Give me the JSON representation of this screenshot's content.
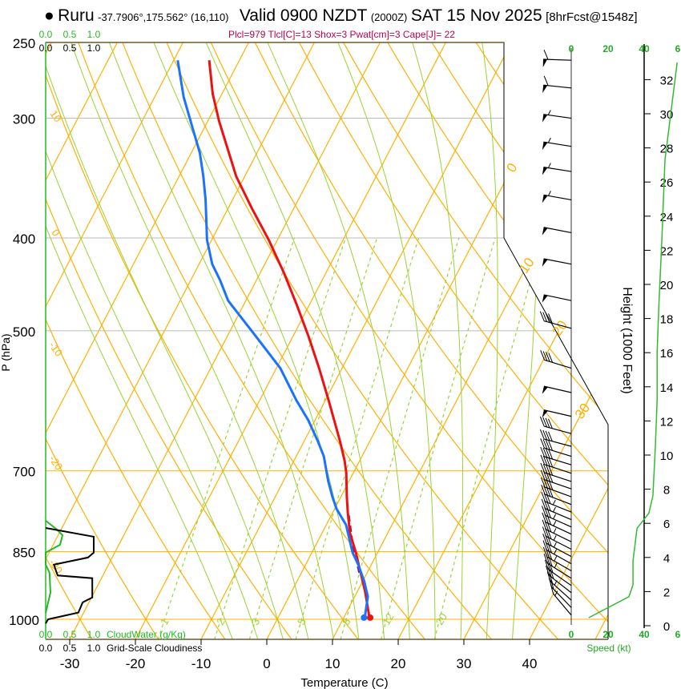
{
  "header": {
    "bullet": "●",
    "station": "Ruru",
    "coords": "-37.7906°,175.562° (16,110)",
    "valid": "Valid 0900 NZDT",
    "utc": "(2000Z)",
    "date": "SAT 15 Nov 2025",
    "forecast": "[8hrFcst@1548z]"
  },
  "parcel_info": "Plcl=979 Tlcl[C]=13 Shox=3 Pwat[cm]=3 Cape[J]= 22",
  "colors": {
    "temp": "#ee1111",
    "dewpoint": "#1a73ff",
    "parcel": "#8b1a6b",
    "isotherm": "#ffb000",
    "moist": "#99d433",
    "mixing": "#99d433",
    "cloudwater": "#22bb22",
    "cloudiness": "#000000",
    "speed": "#33bb33"
  },
  "chart_data": {
    "type": "skew-t",
    "title": "Valid 0900 NZDT (2000Z) SAT 15 Nov 2025",
    "xlabel": "Temperature (C)",
    "ylabel": "P (hPa)",
    "right_ylabel": "Height (1000 Feet)",
    "pressure_ticks": [
      250,
      300,
      400,
      500,
      700,
      850,
      1000
    ],
    "temp_ticks": [
      -30,
      -20,
      -10,
      0,
      10,
      20,
      30,
      40
    ],
    "xlim": [
      -34,
      52
    ],
    "ylim": [
      1050,
      250
    ],
    "temperature": [
      [
        996,
        13.9
      ],
      [
        938,
        11.3
      ],
      [
        894,
        9.0
      ],
      [
        852,
        6.7
      ],
      [
        812,
        4.2
      ],
      [
        774,
        2.3
      ],
      [
        745,
        0.9
      ],
      [
        703,
        -1.1
      ],
      [
        683,
        -2.3
      ],
      [
        651,
        -4.6
      ],
      [
        591,
        -9.5
      ],
      [
        547,
        -13.5
      ],
      [
        507,
        -17.6
      ],
      [
        469,
        -22.0
      ],
      [
        435,
        -26.4
      ],
      [
        402,
        -31.3
      ],
      [
        373,
        -36.3
      ],
      [
        345,
        -41.3
      ],
      [
        302,
        -48.3
      ],
      [
        283,
        -51.4
      ],
      [
        261,
        -54.6
      ]
    ],
    "dewpoint": [
      [
        996,
        13.2
      ],
      [
        947,
        12.0
      ],
      [
        912,
        10.2
      ],
      [
        877,
        8.0
      ],
      [
        852,
        6.2
      ],
      [
        797,
        3.0
      ],
      [
        767,
        0.3
      ],
      [
        745,
        -1.3
      ],
      [
        717,
        -3.2
      ],
      [
        676,
        -5.8
      ],
      [
        651,
        -8.0
      ],
      [
        620,
        -11.0
      ],
      [
        591,
        -14.4
      ],
      [
        547,
        -19.4
      ],
      [
        507,
        -25.6
      ],
      [
        465,
        -32.7
      ],
      [
        443,
        -35.5
      ],
      [
        426,
        -38.0
      ],
      [
        402,
        -40.7
      ],
      [
        365,
        -44.1
      ],
      [
        345,
        -46.3
      ],
      [
        326,
        -48.7
      ],
      [
        307,
        -51.8
      ],
      [
        285,
        -55.6
      ],
      [
        261,
        -59.4
      ]
    ],
    "parcel_trace": [
      [
        894,
        8.8
      ],
      [
        836,
        5.6
      ],
      [
        774,
        2.4
      ]
    ],
    "isotherm_labels": [
      {
        "t": 0,
        "text": "0"
      },
      {
        "t": 10,
        "text": "10"
      },
      {
        "t": 20,
        "text": "20"
      },
      {
        "t": 30,
        "text": "30"
      }
    ],
    "adiabat_labels": [
      {
        "text": "10",
        "p": 300
      },
      {
        "text": "0",
        "p": 397
      },
      {
        "text": "-10",
        "p": 525
      },
      {
        "text": "-20",
        "p": 690
      },
      {
        "text": "-30",
        "p": 885
      }
    ],
    "mixing_ratios": [
      {
        "w": 1,
        "text": "1"
      },
      {
        "w": 2,
        "text": "2"
      },
      {
        "w": 3,
        "text": "3"
      },
      {
        "w": 5,
        "text": "5"
      },
      {
        "w": 8,
        "text": "8"
      },
      {
        "w": 12,
        "text": "12"
      },
      {
        "w": 20,
        "text": "20"
      }
    ],
    "cloud_water_gkg": [
      [
        789,
        0.0
      ],
      [
        805,
        0.22
      ],
      [
        817,
        0.35
      ],
      [
        836,
        0.3
      ],
      [
        852,
        0.0
      ],
      [
        877,
        0.0
      ],
      [
        894,
        0.08
      ],
      [
        938,
        0.1
      ],
      [
        985,
        0.0
      ]
    ],
    "cloudiness": [
      [
        803,
        0.0
      ],
      [
        820,
        1.0
      ],
      [
        852,
        1.0
      ],
      [
        862,
        0.88
      ],
      [
        877,
        0.17
      ],
      [
        900,
        0.25
      ],
      [
        906,
        0.97
      ],
      [
        949,
        0.97
      ],
      [
        960,
        0.77
      ],
      [
        984,
        0.68
      ],
      [
        1000,
        0.05
      ],
      [
        1010,
        0.0
      ]
    ],
    "cloud_scale_ticks": [
      "0.0",
      "0.5",
      "1.0"
    ],
    "cloudwater_label": "CloudWater (g/Kg)",
    "cloudiness_label": "Grid-Scale Cloudiness",
    "winds": [
      {
        "p": 261,
        "spd": 60,
        "dir": 272
      },
      {
        "p": 279,
        "spd": 60,
        "dir": 276
      },
      {
        "p": 300,
        "spd": 55,
        "dir": 278
      },
      {
        "p": 321,
        "spd": 55,
        "dir": 279
      },
      {
        "p": 341,
        "spd": 55,
        "dir": 279
      },
      {
        "p": 365,
        "spd": 55,
        "dir": 280
      },
      {
        "p": 395,
        "spd": 50,
        "dir": 281
      },
      {
        "p": 426,
        "spd": 50,
        "dir": 281
      },
      {
        "p": 465,
        "spd": 50,
        "dir": 282
      },
      {
        "p": 497,
        "spd": 40,
        "dir": 285
      },
      {
        "p": 547,
        "spd": 40,
        "dir": 287
      },
      {
        "p": 580,
        "spd": 50,
        "dir": 283
      },
      {
        "p": 614,
        "spd": 50,
        "dir": 283
      },
      {
        "p": 640,
        "spd": 40,
        "dir": 285
      },
      {
        "p": 660,
        "spd": 40,
        "dir": 285
      },
      {
        "p": 676,
        "spd": 40,
        "dir": 287
      },
      {
        "p": 690,
        "spd": 40,
        "dir": 287
      },
      {
        "p": 704,
        "spd": 40,
        "dir": 288
      },
      {
        "p": 718,
        "spd": 40,
        "dir": 288
      },
      {
        "p": 731,
        "spd": 40,
        "dir": 289
      },
      {
        "p": 745,
        "spd": 40,
        "dir": 290
      },
      {
        "p": 759,
        "spd": 40,
        "dir": 291
      },
      {
        "p": 773,
        "spd": 35,
        "dir": 292
      },
      {
        "p": 787,
        "spd": 35,
        "dir": 293
      },
      {
        "p": 801,
        "spd": 35,
        "dir": 294
      },
      {
        "p": 815,
        "spd": 35,
        "dir": 295
      },
      {
        "p": 830,
        "spd": 35,
        "dir": 296
      },
      {
        "p": 845,
        "spd": 35,
        "dir": 297
      },
      {
        "p": 860,
        "spd": 35,
        "dir": 298
      },
      {
        "p": 875,
        "spd": 35,
        "dir": 299
      },
      {
        "p": 890,
        "spd": 35,
        "dir": 300
      },
      {
        "p": 906,
        "spd": 35,
        "dir": 302
      },
      {
        "p": 922,
        "spd": 30,
        "dir": 305
      },
      {
        "p": 938,
        "spd": 30,
        "dir": 308
      },
      {
        "p": 955,
        "spd": 25,
        "dir": 312
      },
      {
        "p": 972,
        "spd": 20,
        "dir": 316
      },
      {
        "p": 990,
        "spd": 15,
        "dir": 320
      }
    ],
    "speed_axis_ticks": [
      "0",
      "20",
      "40",
      "6"
    ],
    "speed_label": "Speed (kt)",
    "height_ticks_kft": [
      0,
      2,
      4,
      6,
      8,
      10,
      12,
      14,
      16,
      18,
      20,
      22,
      24,
      26,
      28,
      30,
      32
    ],
    "wind_speed_profile": [
      [
        0.47,
        9.6
      ],
      [
        1.7,
        31.6
      ],
      [
        2.4,
        33.8
      ],
      [
        3.8,
        33.8
      ],
      [
        5.7,
        36
      ],
      [
        6.6,
        42.5
      ],
      [
        7.6,
        44.7
      ],
      [
        10.4,
        46
      ],
      [
        13.2,
        47
      ],
      [
        16,
        47
      ],
      [
        18.8,
        48
      ],
      [
        22.6,
        49.6
      ],
      [
        27.3,
        51.3
      ],
      [
        33,
        58
      ]
    ]
  }
}
